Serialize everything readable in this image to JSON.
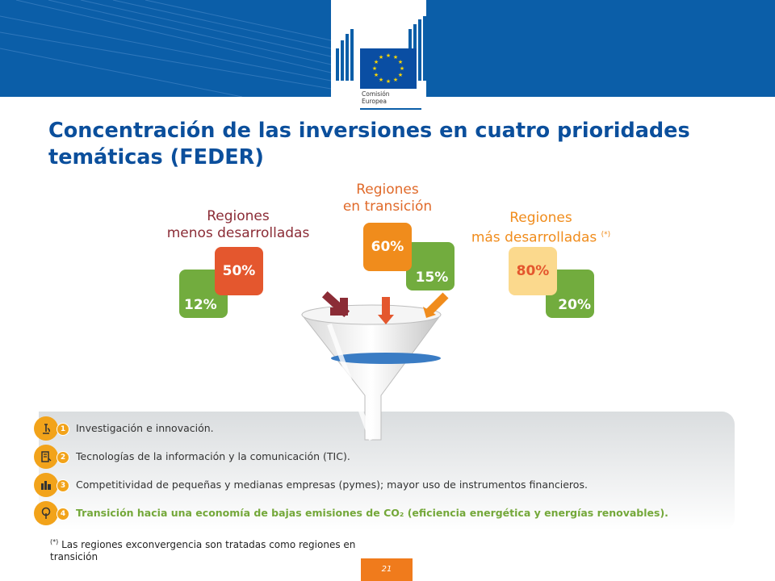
{
  "header": {
    "logo": {
      "line1": "Comisión",
      "line2": "Europea"
    },
    "colors": {
      "band": "#0b5ea8",
      "flag_blue": "#0a4ea3",
      "flag_star": "#ffd700"
    }
  },
  "slide": {
    "title": "Concentración de las inversiones en cuatro prioridades temáticas (FEDER)",
    "regions": [
      {
        "label_line1": "Regiones",
        "label_line2": "menos desarrolladas",
        "note": "",
        "front_value": "50%",
        "back_value": "12%",
        "front_color": "#e4572e",
        "back_color": "#72ac3e",
        "label_color": "#8b2c36"
      },
      {
        "label_line1": "Regiones",
        "label_line2": "en transición",
        "note": "",
        "front_value": "60%",
        "back_value": "15%",
        "front_color": "#f08c1c",
        "back_color": "#72ac3e",
        "label_color": "#e06a2a"
      },
      {
        "label_line1": "Regiones",
        "label_line2": "más desarrolladas",
        "note": "(*)",
        "front_value": "80%",
        "back_value": "20%",
        "front_color": "#fbd98d",
        "back_color": "#72ac3e",
        "label_color": "#f08c1c"
      }
    ],
    "priorities": [
      {
        "number": "1",
        "text": "Investigación e innovación.",
        "icon": "microscope-icon",
        "highlight": false
      },
      {
        "number": "2",
        "text": "Tecnologías de la información y la comunicación (TIC).",
        "icon": "document-icon",
        "highlight": false
      },
      {
        "number": "3",
        "text": "Competitividad de pequeñas y medianas empresas (pymes); mayor uso de instrumentos financieros.",
        "icon": "buildings-icon",
        "highlight": false
      },
      {
        "number": "4",
        "text": "Transición hacia una economía de bajas emisiones de CO₂ (eficiencia energética y energías renovables).",
        "icon": "tree-icon",
        "highlight": true
      }
    ],
    "footnote": {
      "mark": "(*)",
      "text": "Las regiones exconvergencia son tratadas como regiones en transición"
    },
    "page_number": "21"
  }
}
